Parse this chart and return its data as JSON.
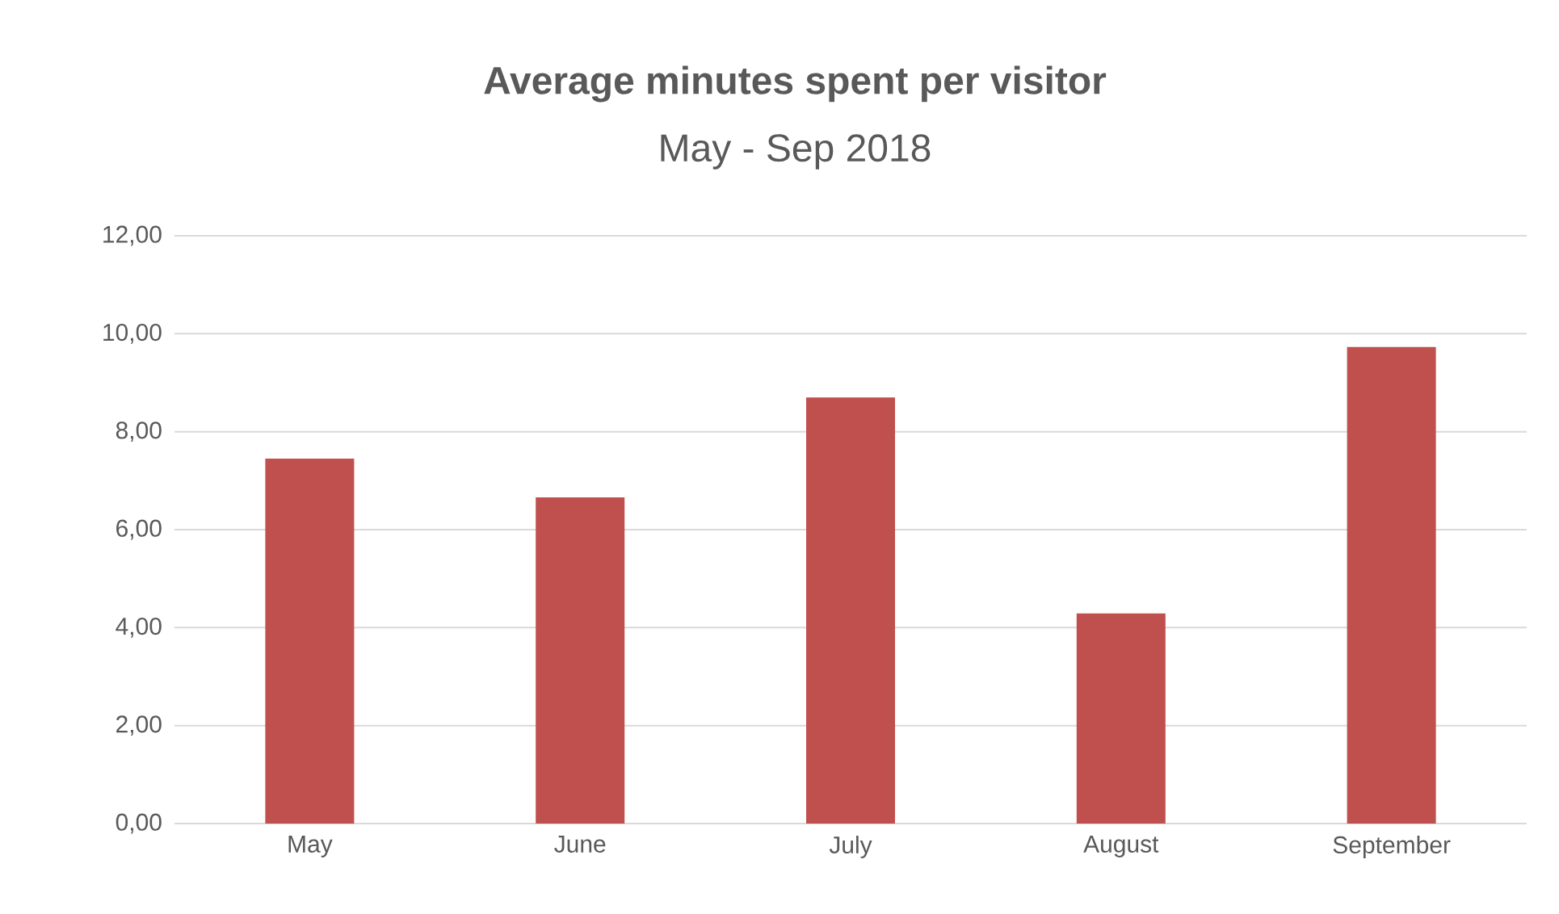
{
  "chart_data": {
    "type": "bar",
    "title": "Average minutes spent per visitor",
    "subtitle": "May - Sep 2018",
    "categories": [
      "May",
      "June",
      "July",
      "August",
      "September"
    ],
    "values": [
      7.45,
      6.66,
      8.7,
      4.29,
      9.73
    ],
    "color": "#c0504d",
    "ylim": [
      0,
      12
    ],
    "yticks": [
      {
        "value": 0,
        "label": "0,00"
      },
      {
        "value": 2,
        "label": "2,00"
      },
      {
        "value": 4,
        "label": "4,00"
      },
      {
        "value": 6,
        "label": "6,00"
      },
      {
        "value": 8,
        "label": "8,00"
      },
      {
        "value": 10,
        "label": "10,00"
      },
      {
        "value": 12,
        "label": "12,00"
      }
    ],
    "grid": "y"
  }
}
